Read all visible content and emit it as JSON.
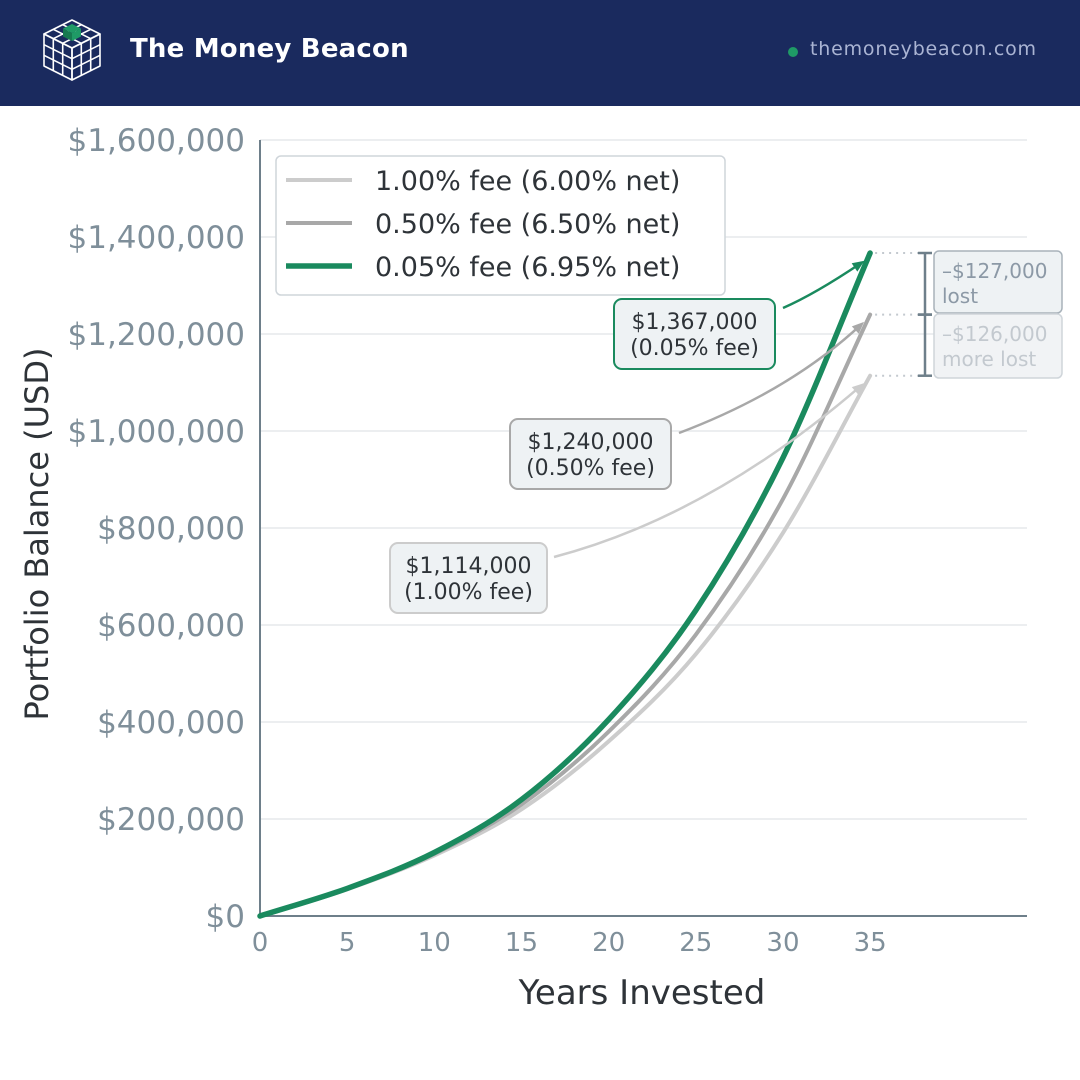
{
  "header": {
    "brand": "The Money Beacon",
    "url": "themoneybeacon.com",
    "logo_icon": "cube-grid-icon",
    "bg_color": "#1a2a5e"
  },
  "chart_data": {
    "type": "line",
    "xlabel": "Years Invested",
    "ylabel": "Portfolio Balance (USD)",
    "xlim": [
      0,
      44
    ],
    "ylim": [
      0,
      1600000
    ],
    "x_ticks": [
      0,
      5,
      10,
      15,
      20,
      25,
      30,
      35
    ],
    "y_ticks": [
      0,
      200000,
      400000,
      600000,
      800000,
      1000000,
      1200000,
      1400000,
      1600000
    ],
    "y_tick_labels": [
      "$0",
      "$200,000",
      "$400,000",
      "$600,000",
      "$800,000",
      "$1,000,000",
      "$1,200,000",
      "$1,400,000",
      "$1,600,000"
    ],
    "grid": "horizontal",
    "legend_position": "top-left",
    "series": [
      {
        "name": "1.00% fee (6.00% net)",
        "color": "#cccccc",
        "x": [
          0,
          5,
          10,
          15,
          20,
          25,
          30,
          35
        ],
        "y": [
          0,
          55000,
          125000,
          220000,
          360000,
          540000,
          790000,
          1114000
        ]
      },
      {
        "name": "0.50% fee (6.50% net)",
        "color": "#a8a8a8",
        "x": [
          0,
          5,
          10,
          15,
          20,
          25,
          30,
          35
        ],
        "y": [
          0,
          56000,
          128000,
          230000,
          380000,
          580000,
          860000,
          1240000
        ]
      },
      {
        "name": "0.05% fee (6.95% net)",
        "color": "#1a8a5e",
        "x": [
          0,
          5,
          10,
          15,
          20,
          25,
          30,
          35
        ],
        "y": [
          0,
          57000,
          131000,
          240000,
          405000,
          630000,
          945000,
          1367000
        ]
      }
    ],
    "annotations": [
      {
        "series": 2,
        "line1": "$1,367,000",
        "line2": "(0.05% fee)",
        "x": 35,
        "y": 1367000
      },
      {
        "series": 1,
        "line1": "$1,240,000",
        "line2": "(0.50% fee)",
        "x": 35,
        "y": 1240000
      },
      {
        "series": 0,
        "line1": "$1,114,000",
        "line2": "(1.00% fee)",
        "x": 35,
        "y": 1114000
      }
    ],
    "loss_brackets": [
      {
        "line1": "–$127,000",
        "line2": "lost",
        "from": 1367000,
        "to": 1240000,
        "color": "#8c99a6"
      },
      {
        "line1": "–$126,000",
        "line2": "more lost",
        "from": 1240000,
        "to": 1114000,
        "color": "#c3c9cf"
      }
    ]
  }
}
